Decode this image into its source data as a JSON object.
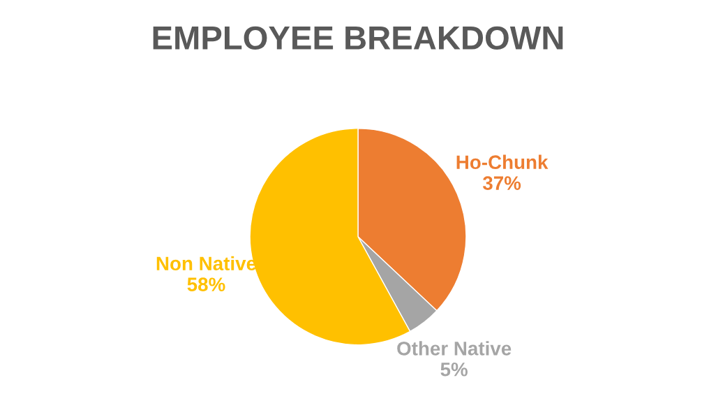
{
  "chart_data": {
    "type": "pie",
    "title": "EMPLOYEE BREAKDOWN",
    "categories": [
      "Ho-Chunk",
      "Other Native",
      "Non Native"
    ],
    "values": [
      37,
      5,
      58
    ],
    "value_labels": [
      "37%",
      "5%",
      "58%"
    ],
    "colors": [
      "#ed7d31",
      "#a5a5a5",
      "#ffc000"
    ],
    "legend": false
  }
}
